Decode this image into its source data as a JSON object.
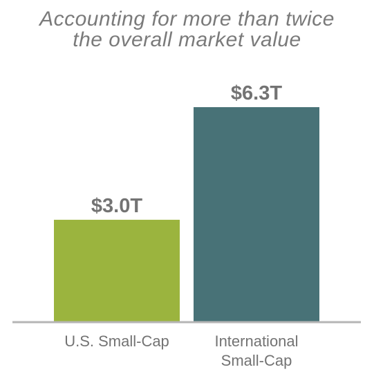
{
  "chart_data": {
    "type": "bar",
    "title_lines": [
      "Accounting for more than twice",
      "the overall market value"
    ],
    "xlabel": "",
    "ylabel": "",
    "categories": [
      [
        "U.S. Small-Cap"
      ],
      [
        "International",
        "Small-Cap"
      ]
    ],
    "values": [
      3.0,
      6.3
    ],
    "value_labels": [
      "$3.0T",
      "$6.3T"
    ],
    "colors": [
      "#9bb43e",
      "#487277"
    ],
    "baseline_color": "#b5b5b5",
    "ylim": [
      0,
      6.3
    ],
    "grid": false,
    "legend": "none"
  }
}
